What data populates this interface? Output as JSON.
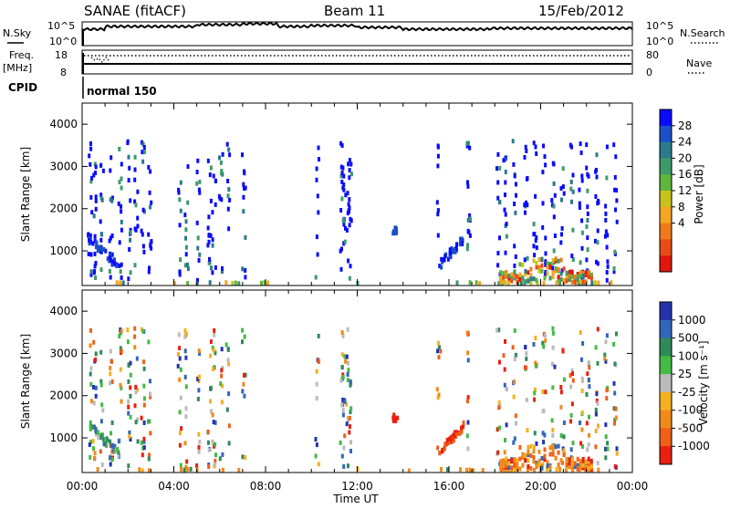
{
  "header": {
    "station": "SANAE (fitACF)",
    "beam": "Beam 11",
    "date": "15/Feb/2012"
  },
  "summary_panel": {
    "left_top_label": "N.Sky",
    "left_mid_label": "Freq.",
    "left_mid_unit": "[MHz]",
    "left_bottom_label": "CPID",
    "right_top_label": "N.Search",
    "right_mid_label": "Nave",
    "nsky_ticks": [
      "10^5",
      "10^0"
    ],
    "freq_ticks": [
      "18",
      "8"
    ],
    "nave_ticks": [
      "80",
      "0"
    ],
    "cpid_name": "normal 150"
  },
  "time_axis": {
    "label": "Time UT",
    "ticks": [
      "00:00",
      "04:00",
      "08:00",
      "12:00",
      "16:00",
      "20:00",
      "00:00"
    ]
  },
  "chart_data": [
    {
      "type": "heatmap",
      "title": "",
      "ylabel": "Slant Range [km]",
      "yticks": [
        "4000",
        "3000",
        "2000",
        "1000"
      ],
      "xlim": [
        0,
        24
      ],
      "ylim": [
        180,
        4500
      ],
      "colorbar": {
        "label": "Power [dB]",
        "ticks": [
          "28",
          "24",
          "20",
          "16",
          "12",
          "8",
          "4"
        ],
        "colors": [
          "#0a0aff",
          "#1a4fc8",
          "#2b7a8c",
          "#3e9a6a",
          "#5fb53c",
          "#c8c31c",
          "#f5a623",
          "#f07a1a",
          "#e84c14",
          "#e0180c"
        ]
      }
    },
    {
      "type": "heatmap",
      "title": "",
      "ylabel": "Slant Range [km]",
      "yticks": [
        "4000",
        "3000",
        "2000",
        "1000"
      ],
      "xlim": [
        0,
        24
      ],
      "ylim": [
        180,
        4500
      ],
      "colorbar": {
        "label": "Velocity [m s⁻¹]",
        "ticks": [
          "1000",
          "500",
          "100",
          "25",
          "-25",
          "-100",
          "-500",
          "-1000"
        ],
        "colors": [
          "#2233aa",
          "#3366bb",
          "#2f8a5a",
          "#44bb44",
          "#bbbbbb",
          "#f5b020",
          "#f08a1a",
          "#f06018",
          "#e82010"
        ]
      }
    }
  ]
}
